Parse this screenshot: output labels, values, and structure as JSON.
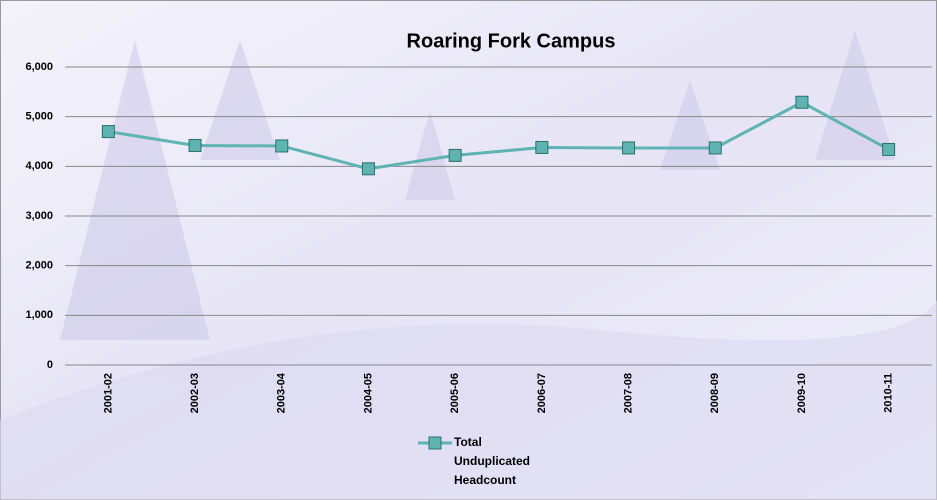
{
  "chart_data": {
    "type": "line",
    "title": "Roaring Fork Campus",
    "categories": [
      "2001-02",
      "2002-03",
      "2003-04",
      "2004-05",
      "2005-06",
      "2006-07",
      "2007-08",
      "2008-09",
      "2009-10",
      "2010-11"
    ],
    "series": [
      {
        "name": "Total Unduplicated Headcount",
        "color": "#5fb3b3",
        "values": [
          4700,
          4420,
          4410,
          3950,
          4220,
          4380,
          4370,
          4370,
          5290,
          4340
        ]
      }
    ],
    "ylim": [
      0,
      6000
    ],
    "yticks": [
      0,
      {
        "value": 1000,
        "label": "1,000"
      },
      {
        "value": 2000,
        "label": "2,000"
      },
      {
        "value": 3000,
        "label": "3,000"
      },
      {
        "value": 4000,
        "label": "4,000"
      },
      {
        "value": 5000,
        "label": "5,000"
      },
      {
        "value": 6000,
        "label": "6,000"
      }
    ],
    "grid": true,
    "legend": "bottom"
  }
}
